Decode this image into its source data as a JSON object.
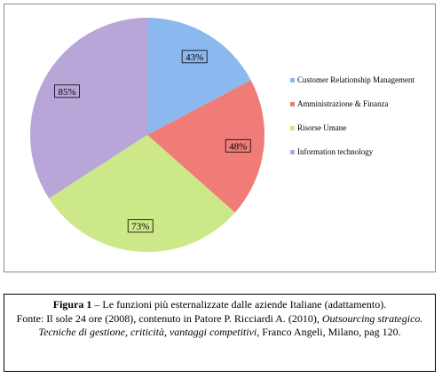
{
  "chart_data": {
    "type": "pie",
    "title": "",
    "categories": [
      "Customer Relationship Management",
      "Amministrazione & Finanza",
      "Risorse Umane",
      "Information technology"
    ],
    "values": [
      43,
      48,
      73,
      85
    ],
    "labels": [
      "43%",
      "48%",
      "73%",
      "85%"
    ],
    "colors": [
      "#8bb8ef",
      "#f07c78",
      "#cce889",
      "#b9a6d8"
    ],
    "legend_position": "right"
  },
  "caption": {
    "figure_label": "Figura 1",
    "figure_title": " – Le funzioni più esternalizzate dalle aziende Italiane (adattamento).",
    "source_prefix": "Fonte: Il sole 24 ore (2008), contenuto in Patore P. Ricciardi A. (2010), ",
    "book_title": "Outsourcing strategico. Tecniche di gestione, criticità, vantaggi competitivi",
    "source_suffix": ", Franco Angeli, Milano, pag 120."
  }
}
